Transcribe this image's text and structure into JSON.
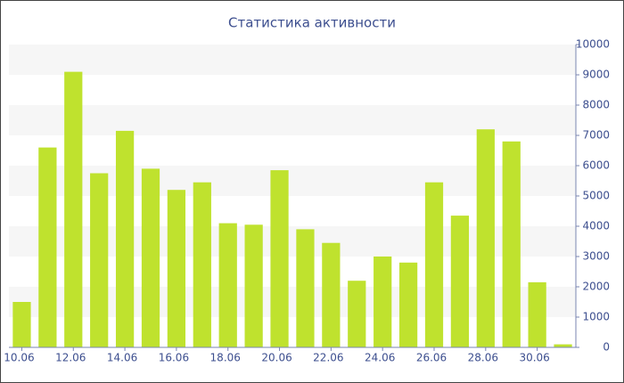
{
  "chart_data": {
    "type": "bar",
    "title": "Статистика активности",
    "categories": [
      "10.06",
      null,
      "12.06",
      null,
      "14.06",
      null,
      "16.06",
      null,
      "18.06",
      null,
      "20.06",
      null,
      "22.06",
      null,
      "24.06",
      null,
      "26.06",
      null,
      "28.06",
      null,
      "30.06",
      null
    ],
    "values": [
      1500,
      6600,
      9100,
      5750,
      7150,
      5900,
      5200,
      5450,
      4100,
      4050,
      5850,
      3900,
      3450,
      2200,
      3000,
      2800,
      5450,
      4350,
      7200,
      6800,
      2150,
      100
    ],
    "color": "#bfe22e",
    "ylim": [
      0,
      10000
    ],
    "yticks": [
      0,
      1000,
      2000,
      3000,
      4000,
      5000,
      6000,
      7000,
      8000,
      9000,
      10000
    ],
    "grid": true
  }
}
